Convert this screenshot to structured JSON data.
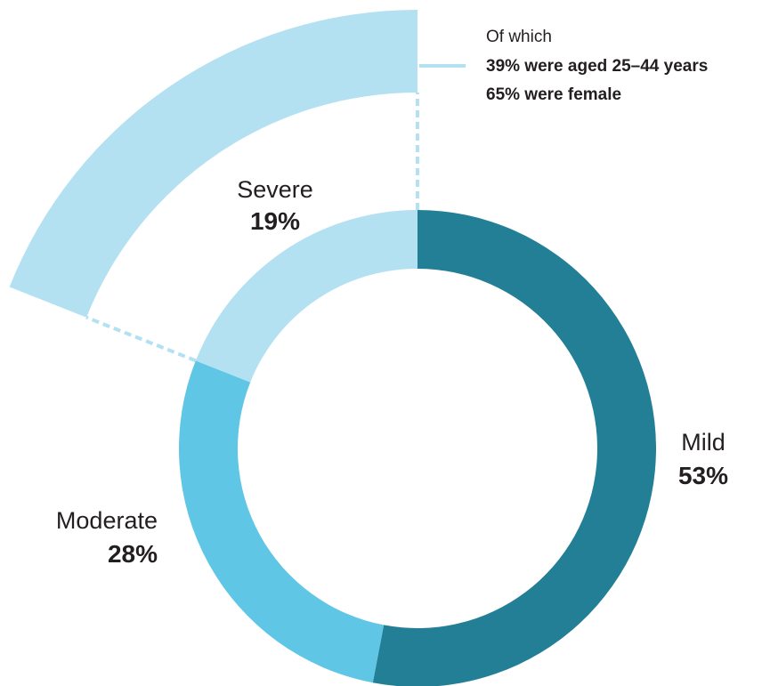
{
  "chart_data": {
    "type": "pie",
    "variant": "donut",
    "categories": [
      "Mild",
      "Moderate",
      "Severe"
    ],
    "values": [
      53,
      28,
      19
    ],
    "value_labels": [
      "53%",
      "28%",
      "19%"
    ],
    "colors": [
      "#237f96",
      "#5fc6e6",
      "#b3e1f2"
    ],
    "exploded_category": "Severe",
    "callout": {
      "heading": "Of which",
      "lines": [
        "39% were aged 25–44 years",
        "65% were female"
      ]
    }
  }
}
